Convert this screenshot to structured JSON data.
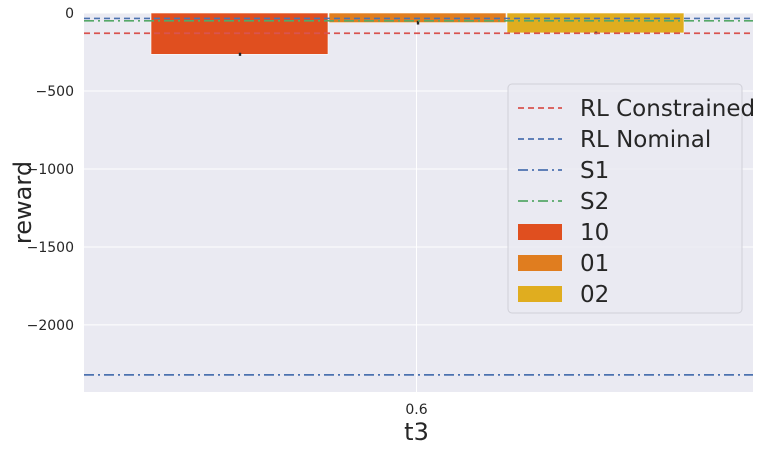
{
  "chart_data": {
    "type": "bar",
    "xlabel": "t3",
    "ylabel": "reward",
    "categories": [
      "0.6"
    ],
    "ylim": [
      -2430,
      0
    ],
    "yticks": [
      0,
      -500,
      -1000,
      -1500,
      -2000
    ],
    "ytick_labels": [
      "0",
      "−500",
      "−1000",
      "−1500",
      "−2000"
    ],
    "grid": true,
    "legend_position": "right",
    "series": [
      {
        "name": "10",
        "values": [
          -265
        ],
        "error": [
          10
        ],
        "color": "#e04f1f"
      },
      {
        "name": "01",
        "values": [
          -62
        ],
        "error": [
          12
        ],
        "color": "#e07d1f"
      },
      {
        "name": "02",
        "values": [
          -128
        ],
        "error": [
          8
        ],
        "color": "#e0ad1f"
      }
    ],
    "reference_lines": [
      {
        "name": "RL Constrained",
        "value": -130,
        "style": "dashed",
        "color": "#d9534f"
      },
      {
        "name": "RL Nominal",
        "value": -35,
        "style": "dashed",
        "color": "#4c72b0"
      },
      {
        "name": "S1",
        "value": -2320,
        "style": "dashdot",
        "color": "#4c72b0"
      },
      {
        "name": "S2",
        "value": -50,
        "style": "dashdot",
        "color": "#55a868"
      }
    ]
  }
}
